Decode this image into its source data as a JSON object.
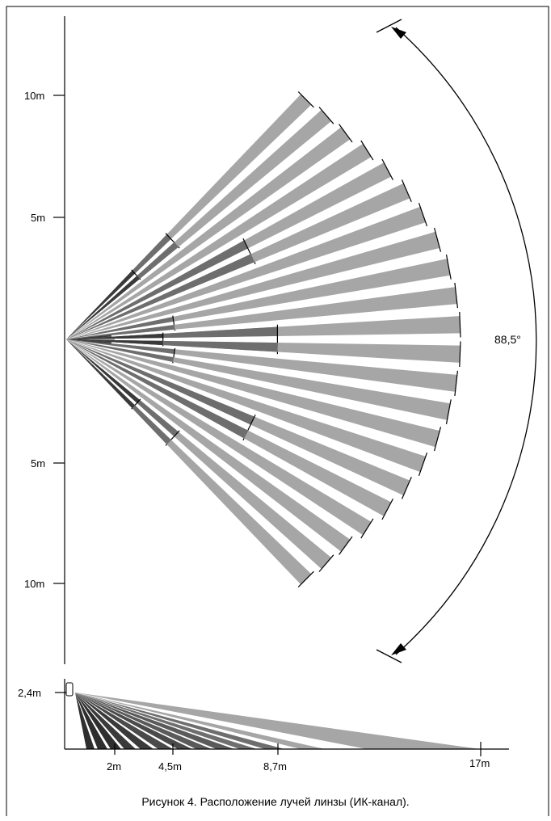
{
  "top_view": {
    "axis_labels": [
      "10m",
      "5m",
      "5m",
      "10m"
    ],
    "angle_label": "88,5°",
    "beam_count": 22,
    "colors": {
      "beam_long": "#a6a6a6",
      "beam_mid": "#6e6e6e",
      "beam_short": "#3a3a3a",
      "line": "#000000"
    }
  },
  "side_view": {
    "height_label": "2,4m",
    "distance_labels": [
      "2m",
      "4,5m",
      "8,7m",
      "17m"
    ],
    "colors": {
      "far": "#a6a6a6",
      "mid": "#6e6e6e",
      "near": "#3a3a3a"
    }
  },
  "caption": "Рисунок 4. Расположение лучей линзы (ИК-канал)."
}
